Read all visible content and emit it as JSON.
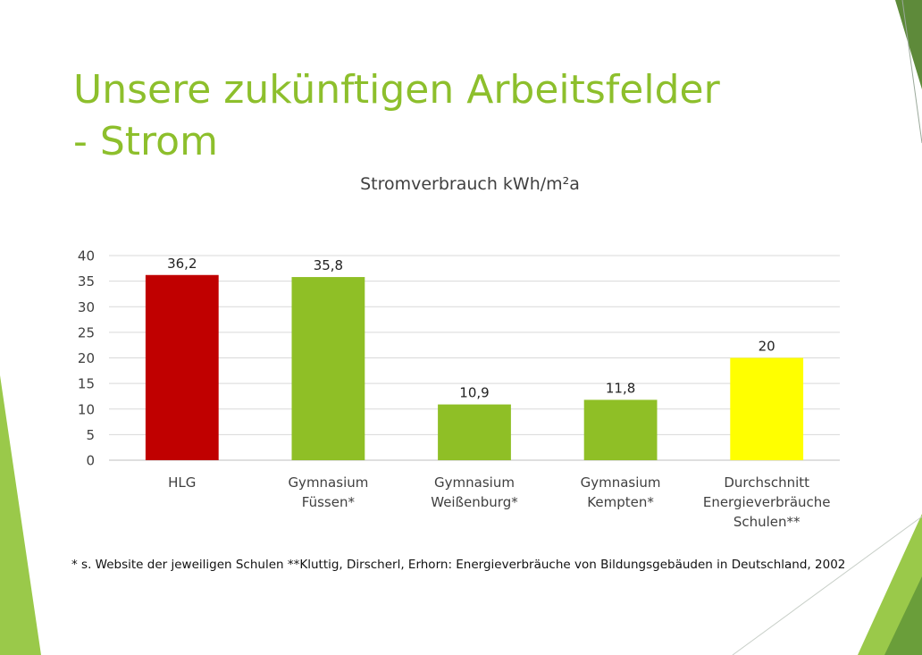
{
  "slide": {
    "title_line1": "Unsere zukünftigen Arbeitsfelder",
    "title_line2": "- Strom",
    "footnote": "* s. Website der jeweiligen Schulen   **Kluttig, Dirscherl, Erhorn: Energieverbräuche von Bildungsgebäuden in Deutschland, 2002"
  },
  "chart_data": {
    "type": "bar",
    "title": "Stromverbrauch kWh/m²a",
    "categories": [
      [
        "HLG"
      ],
      [
        "Gymnasium",
        "Füssen*"
      ],
      [
        "Gymnasium",
        "Weißenburg*"
      ],
      [
        "Gymnasium",
        "Kempten*"
      ],
      [
        "Durchschnitt",
        "Energieverbräuche",
        "Schulen**"
      ]
    ],
    "values": [
      36.2,
      35.8,
      10.9,
      11.8,
      20
    ],
    "value_labels": [
      "36,2",
      "35,8",
      "10,9",
      "11,8",
      "20"
    ],
    "bar_colors": [
      "#c00000",
      "#8fbf26",
      "#8fbf26",
      "#8fbf26",
      "#ffff00"
    ],
    "ylim": [
      0,
      40
    ],
    "yticks": [
      0,
      5,
      10,
      15,
      20,
      25,
      30,
      35,
      40
    ],
    "grid": true,
    "legend": "none"
  },
  "colors": {
    "title": "#8dbf2c",
    "accent_green": "#8fbf26",
    "dark_green": "#5a8f2a"
  }
}
